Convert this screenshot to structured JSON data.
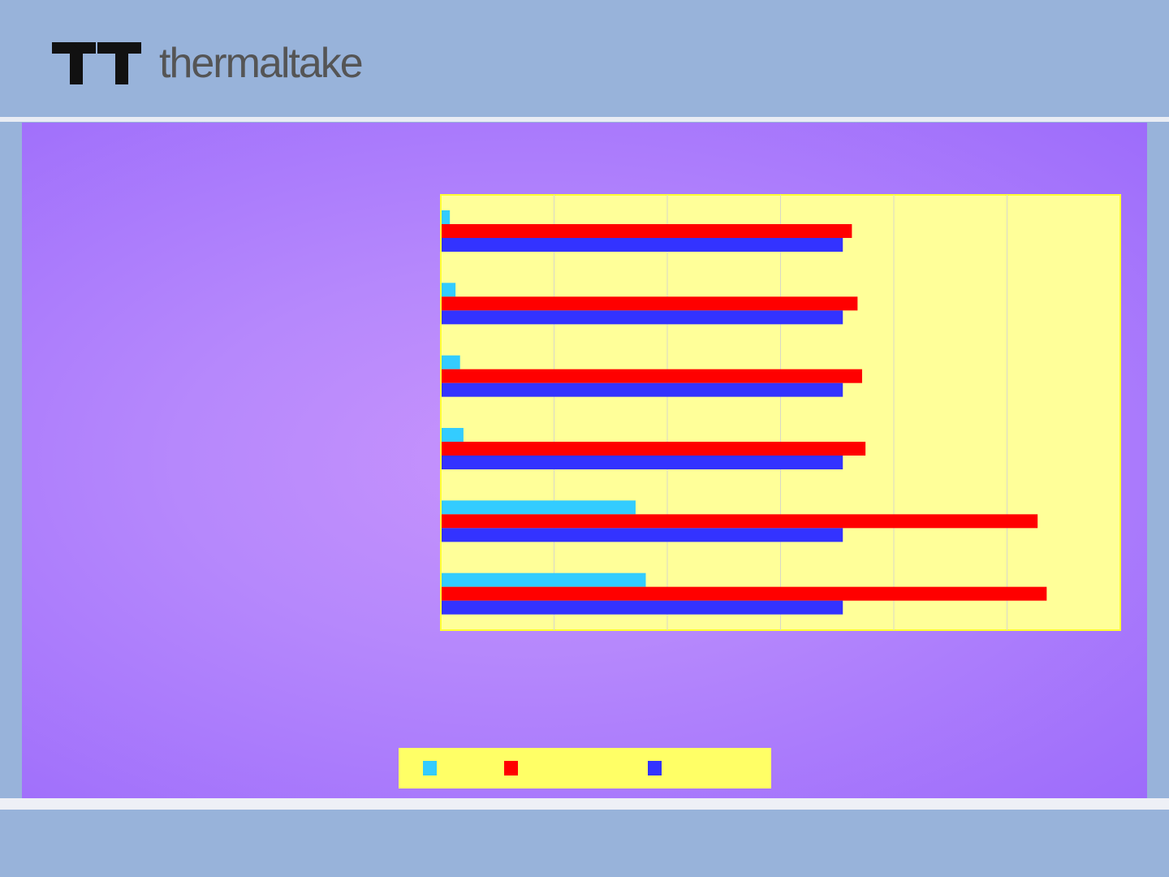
{
  "header": {
    "logo_text": "thermaltake",
    "logo_icon": "tt-logo-icon"
  },
  "colors": {
    "plot_bg": "#ffff99",
    "plot_border": "#ffff33",
    "grid": "#d8d8c8",
    "legend_bg": "#ffff66"
  },
  "chart_data": {
    "type": "bar",
    "orientation": "horizontal",
    "categories": [
      "",
      "",
      "",
      "",
      "",
      ""
    ],
    "series": [
      {
        "color": "#33ccff",
        "values": [
          0.08,
          0.13,
          0.17,
          0.2,
          1.72,
          1.81
        ]
      },
      {
        "color": "#ff0000",
        "values": [
          3.63,
          3.68,
          3.72,
          3.75,
          5.27,
          5.35
        ]
      },
      {
        "color": "#3333ff",
        "values": [
          3.55,
          3.55,
          3.55,
          3.55,
          3.55,
          3.55
        ]
      }
    ],
    "xlim": [
      0,
      6
    ],
    "grid": true,
    "legend_placement": "bottom"
  }
}
